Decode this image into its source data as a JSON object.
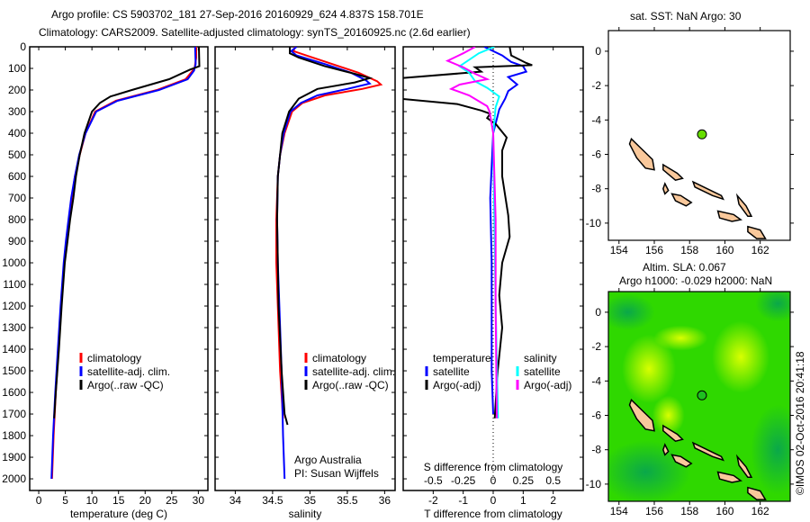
{
  "title": {
    "line1": "Argo profile: CS 5903702_181 27-Sep-2016 20160929_624 4.837S 158.701E",
    "line2": "Climatology: CARS2009. Satellite-adjusted climatology: synTS_20160925.nc (2.6d earlier)"
  },
  "credit": "©IMOS 02-Oct-2016 20:41:18",
  "note": {
    "line1": "Argo Australia",
    "line2": "PI: Susan Wijffels"
  },
  "colors": {
    "climatology": "#ff0000",
    "satellite": "#0000ff",
    "argo": "#000000",
    "sal_satellite": "#00ffff",
    "sal_argo": "#ff00ff",
    "land": "#f9c89b",
    "argo_dot": "#66dd00"
  },
  "chart_data": [
    {
      "type": "line",
      "title": "",
      "xlabel": "temperature (deg C)",
      "ylabel": "",
      "xlim": [
        -1.7,
        31.8
      ],
      "ylim": [
        2054,
        0
      ],
      "xticks": [
        0,
        5,
        10,
        15,
        20,
        25,
        30
      ],
      "yticks": [
        0,
        100,
        200,
        300,
        400,
        500,
        600,
        700,
        800,
        900,
        1000,
        1100,
        1200,
        1300,
        1400,
        1500,
        1600,
        1700,
        1800,
        1900,
        2000
      ],
      "legend": [
        "climatology",
        "satellite-adj. clim.",
        "Argo(..raw -QC)"
      ],
      "series": [
        {
          "name": "climatology",
          "color": "#ff0000",
          "points": [
            [
              29.6,
              0
            ],
            [
              29.6,
              50
            ],
            [
              29.3,
              100
            ],
            [
              27.6,
              150
            ],
            [
              22.2,
              200
            ],
            [
              14.5,
              250
            ],
            [
              10.6,
              300
            ],
            [
              8.8,
              400
            ],
            [
              7.7,
              500
            ],
            [
              6.8,
              600
            ],
            [
              6.2,
              700
            ],
            [
              5.7,
              800
            ],
            [
              5.2,
              900
            ],
            [
              4.8,
              1000
            ],
            [
              4.2,
              1200
            ],
            [
              3.7,
              1400
            ],
            [
              3.2,
              1600
            ],
            [
              2.8,
              1800
            ],
            [
              2.5,
              2000
            ]
          ]
        },
        {
          "name": "satellite-adj. clim.",
          "color": "#0000ff",
          "points": [
            [
              29.4,
              0
            ],
            [
              29.5,
              80
            ],
            [
              29.2,
              110
            ],
            [
              28.0,
              150
            ],
            [
              22.6,
              200
            ],
            [
              14.8,
              250
            ],
            [
              10.8,
              300
            ],
            [
              8.8,
              400
            ],
            [
              7.6,
              500
            ],
            [
              6.8,
              600
            ],
            [
              6.1,
              700
            ],
            [
              5.6,
              800
            ],
            [
              5.1,
              900
            ],
            [
              4.7,
              1000
            ],
            [
              4.1,
              1200
            ],
            [
              3.6,
              1400
            ],
            [
              3.1,
              1600
            ],
            [
              2.7,
              1800
            ],
            [
              2.4,
              2000
            ]
          ]
        },
        {
          "name": "Argo(..raw -QC)",
          "color": "#000000",
          "points": [
            [
              30.1,
              0
            ],
            [
              30.2,
              90
            ],
            [
              28.5,
              105
            ],
            [
              24.5,
              150
            ],
            [
              17.5,
              200
            ],
            [
              13.5,
              230
            ],
            [
              11.5,
              260
            ],
            [
              10.0,
              300
            ],
            [
              8.6,
              400
            ],
            [
              7.7,
              500
            ],
            [
              7.0,
              600
            ],
            [
              6.5,
              700
            ],
            [
              5.9,
              800
            ],
            [
              5.4,
              900
            ],
            [
              4.9,
              1000
            ],
            [
              4.3,
              1200
            ],
            [
              3.8,
              1400
            ],
            [
              3.2,
              1600
            ],
            [
              2.9,
              1720
            ]
          ]
        }
      ]
    },
    {
      "type": "line",
      "title": "",
      "xlabel": "salinity",
      "ylabel": "",
      "xlim": [
        33.73,
        36.14
      ],
      "ylim": [
        2054,
        0
      ],
      "xticks": [
        34,
        34.5,
        35,
        35.5,
        36
      ],
      "legend": [
        "climatology",
        "satellite-adj. clim.",
        "Argo(..raw -QC)"
      ],
      "series": [
        {
          "name": "climatology",
          "color": "#ff0000",
          "points": [
            [
              34.8,
              0
            ],
            [
              34.78,
              20
            ],
            [
              34.95,
              40
            ],
            [
              35.3,
              80
            ],
            [
              35.65,
              120
            ],
            [
              35.9,
              160
            ],
            [
              35.95,
              175
            ],
            [
              35.7,
              195
            ],
            [
              35.2,
              225
            ],
            [
              34.9,
              260
            ],
            [
              34.76,
              300
            ],
            [
              34.66,
              400
            ],
            [
              34.6,
              500
            ],
            [
              34.57,
              600
            ],
            [
              34.55,
              800
            ],
            [
              34.55,
              1000
            ],
            [
              34.57,
              1200
            ],
            [
              34.6,
              1500
            ],
            [
              34.64,
              1720
            ]
          ]
        },
        {
          "name": "satellite-adj. clim.",
          "color": "#0000ff",
          "points": [
            [
              34.82,
              0
            ],
            [
              34.75,
              20
            ],
            [
              34.82,
              40
            ],
            [
              35.2,
              80
            ],
            [
              35.55,
              120
            ],
            [
              35.75,
              155
            ],
            [
              35.8,
              170
            ],
            [
              35.5,
              195
            ],
            [
              35.1,
              225
            ],
            [
              34.88,
              260
            ],
            [
              34.74,
              300
            ],
            [
              34.65,
              400
            ],
            [
              34.6,
              500
            ],
            [
              34.57,
              600
            ],
            [
              34.56,
              800
            ],
            [
              34.57,
              1000
            ],
            [
              34.59,
              1200
            ],
            [
              34.62,
              1500
            ],
            [
              34.64,
              1800
            ],
            [
              34.66,
              2000
            ]
          ]
        },
        {
          "name": "Argo(..raw -QC)",
          "color": "#000000",
          "points": [
            [
              34.73,
              0
            ],
            [
              34.73,
              30
            ],
            [
              34.85,
              50
            ],
            [
              35.2,
              90
            ],
            [
              35.6,
              125
            ],
            [
              35.8,
              145
            ],
            [
              35.6,
              165
            ],
            [
              35.1,
              195
            ],
            [
              34.85,
              240
            ],
            [
              34.72,
              300
            ],
            [
              34.63,
              400
            ],
            [
              34.6,
              500
            ],
            [
              34.57,
              600
            ],
            [
              34.56,
              800
            ],
            [
              34.57,
              1000
            ],
            [
              34.58,
              1200
            ],
            [
              34.62,
              1500
            ],
            [
              34.66,
              1700
            ],
            [
              34.7,
              1750
            ]
          ]
        }
      ]
    },
    {
      "type": "line",
      "title": "",
      "xlabel": "T difference from climatology",
      "xlabel2": "S difference from climatology",
      "ylabel": "",
      "xlim": [
        -3,
        3
      ],
      "xlim2": [
        -0.75,
        0.75
      ],
      "ylim": [
        2054,
        0
      ],
      "xticks": [
        -2,
        -1,
        0,
        1,
        2
      ],
      "xticks2": [
        -0.5,
        -0.25,
        0,
        0.25,
        0.5
      ],
      "legend_headers": [
        "temperature",
        "salinity"
      ],
      "legend": [
        "satellite",
        "Argo(-adj)",
        "satellite",
        "Argo(-adj)"
      ],
      "series": [
        {
          "name": "temperature satellite",
          "axis": "T",
          "color": "#0000ff",
          "points": [
            [
              -0.3,
              0
            ],
            [
              0.3,
              40
            ],
            [
              0.6,
              70
            ],
            [
              1.0,
              90
            ],
            [
              1.1,
              115
            ],
            [
              0.5,
              140
            ],
            [
              0.8,
              175
            ],
            [
              0.5,
              205
            ],
            [
              0.4,
              240
            ],
            [
              0.2,
              290
            ],
            [
              0.0,
              400
            ],
            [
              -0.1,
              700
            ],
            [
              -0.05,
              1000
            ],
            [
              -0.05,
              1500
            ],
            [
              0.0,
              1700
            ]
          ]
        },
        {
          "name": "temperature Argo(-adj)",
          "axis": "T",
          "color": "#000000",
          "points": [
            [
              0.55,
              0
            ],
            [
              0.6,
              40
            ],
            [
              1.1,
              75
            ],
            [
              1.3,
              85
            ],
            [
              -0.6,
              95
            ],
            [
              -0.4,
              115
            ],
            [
              -3.5,
              150
            ],
            [
              -3.5,
              235
            ],
            [
              -1.2,
              265
            ],
            [
              -0.4,
              295
            ],
            [
              -0.1,
              310
            ],
            [
              -0.2,
              330
            ],
            [
              0.1,
              360
            ],
            [
              0.45,
              420
            ],
            [
              0.3,
              480
            ],
            [
              0.3,
              600
            ],
            [
              0.5,
              780
            ],
            [
              0.55,
              880
            ],
            [
              0.3,
              1000
            ],
            [
              0.2,
              1150
            ],
            [
              0.3,
              1300
            ],
            [
              0.15,
              1500
            ],
            [
              0.05,
              1720
            ]
          ]
        },
        {
          "name": "salinity satellite",
          "axis": "S",
          "color": "#00ffff",
          "points": [
            [
              0.01,
              0
            ],
            [
              -0.12,
              30
            ],
            [
              -0.28,
              90
            ],
            [
              -0.2,
              120
            ],
            [
              -0.15,
              160
            ],
            [
              -0.05,
              190
            ],
            [
              0.05,
              230
            ],
            [
              0.02,
              280
            ],
            [
              0.0,
              400
            ],
            [
              0.01,
              800
            ],
            [
              0.02,
              1200
            ],
            [
              0.04,
              1720
            ]
          ]
        },
        {
          "name": "salinity Argo(-adj)",
          "axis": "S",
          "color": "#ff00ff",
          "points": [
            [
              -0.15,
              0
            ],
            [
              -0.25,
              30
            ],
            [
              -0.38,
              65
            ],
            [
              -0.25,
              95
            ],
            [
              -0.15,
              125
            ],
            [
              -0.05,
              150
            ],
            [
              -0.28,
              175
            ],
            [
              -0.35,
              195
            ],
            [
              -0.2,
              225
            ],
            [
              -0.05,
              275
            ],
            [
              -0.03,
              300
            ],
            [
              0.0,
              400
            ],
            [
              0.02,
              800
            ],
            [
              0.02,
              1200
            ],
            [
              0.03,
              1720
            ]
          ]
        }
      ]
    },
    {
      "type": "map",
      "title": "sat. SST: NaN Argo: 30",
      "xlim": [
        153.4,
        163.7
      ],
      "ylim": [
        -11,
        1.2
      ],
      "xticks": [
        154,
        156,
        158,
        160,
        162
      ],
      "yticks": [
        0,
        -2,
        -4,
        -6,
        -8,
        -10
      ],
      "argo_position": [
        158.701,
        -4.837
      ]
    },
    {
      "type": "map",
      "title": "Altim. SLA: 0.067",
      "subtitle": "Argo h1000: -0.029 h2000: NaN",
      "xlim": [
        153.4,
        163.7
      ],
      "ylim": [
        -11,
        1.2
      ],
      "xticks": [
        154,
        156,
        158,
        160,
        162
      ],
      "yticks": [
        0,
        -2,
        -4,
        -6,
        -8,
        -10
      ],
      "argo_position": [
        158.701,
        -4.837
      ]
    }
  ]
}
